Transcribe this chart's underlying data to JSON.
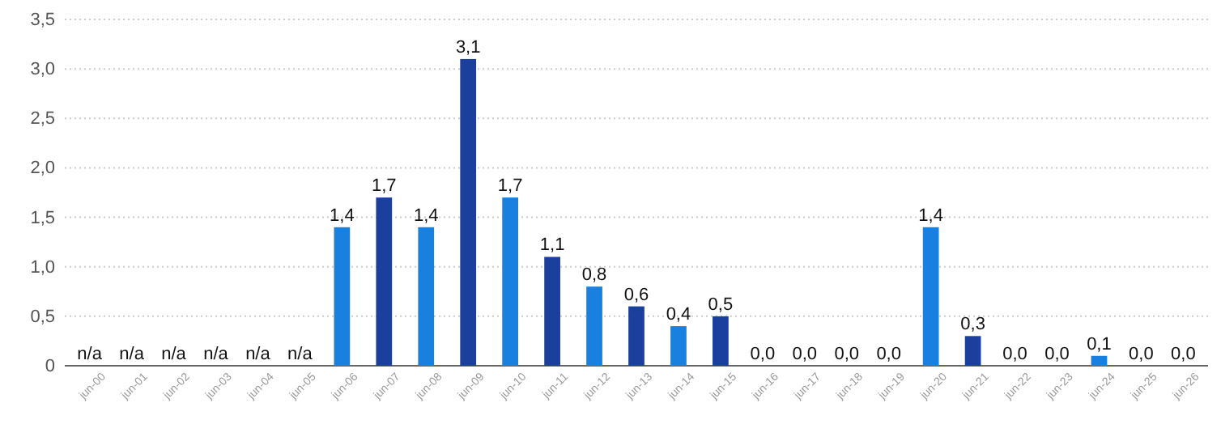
{
  "chart_data": {
    "type": "bar",
    "categories": [
      "jun-00",
      "jun-01",
      "jun-02",
      "jun-03",
      "jun-04",
      "jun-05",
      "jun-06",
      "jun-07",
      "jun-08",
      "jun-09",
      "jun-10",
      "jun-11",
      "jun-12",
      "jun-13",
      "jun-14",
      "jun-15",
      "jun-16",
      "jun-17",
      "jun-18",
      "jun-19",
      "jun-20",
      "jun-21",
      "jun-22",
      "jun-23",
      "jun-24",
      "jun-25",
      "jun-26"
    ],
    "values": [
      null,
      null,
      null,
      null,
      null,
      null,
      1.4,
      1.7,
      1.4,
      3.1,
      1.7,
      1.1,
      0.8,
      0.6,
      0.4,
      0.5,
      0.0,
      0.0,
      0.0,
      0.0,
      1.4,
      0.3,
      0.0,
      0.0,
      0.1,
      0.0,
      0.0
    ],
    "value_labels": [
      "n/a",
      "n/a",
      "n/a",
      "n/a",
      "n/a",
      "n/a",
      "1,4",
      "1,7",
      "1,4",
      "3,1",
      "1,7",
      "1,1",
      "0,8",
      "0,6",
      "0,4",
      "0,5",
      "0,0",
      "0,0",
      "0,0",
      "0,0",
      "1,4",
      "0,3",
      "0,0",
      "0,0",
      "0,1",
      "0,0",
      "0,0"
    ],
    "colors": [
      null,
      null,
      null,
      null,
      null,
      null,
      "#1a80e0",
      "#1b3f9c",
      "#1a80e0",
      "#1b3f9c",
      "#1a80e0",
      "#1b3f9c",
      "#1a80e0",
      "#1b3f9c",
      "#1a80e0",
      "#1b3f9c",
      "#1a80e0",
      "#1b3f9c",
      "#1a80e0",
      "#1b3f9c",
      "#1a80e0",
      "#1b3f9c",
      "#1a80e0",
      "#1b3f9c",
      "#1a80e0",
      "#1b3f9c",
      "#1a80e0"
    ],
    "ylim": [
      0,
      3.5
    ],
    "yticks": [
      {
        "value": 0,
        "label": "0"
      },
      {
        "value": 0.5,
        "label": "0,5"
      },
      {
        "value": 1,
        "label": "1,0"
      },
      {
        "value": 1.5,
        "label": "1,5"
      },
      {
        "value": 2,
        "label": "2,0"
      },
      {
        "value": 2.5,
        "label": "2,5"
      },
      {
        "value": 3,
        "label": "3,0"
      },
      {
        "value": 3.5,
        "label": "3,5"
      }
    ],
    "grid": "y"
  }
}
